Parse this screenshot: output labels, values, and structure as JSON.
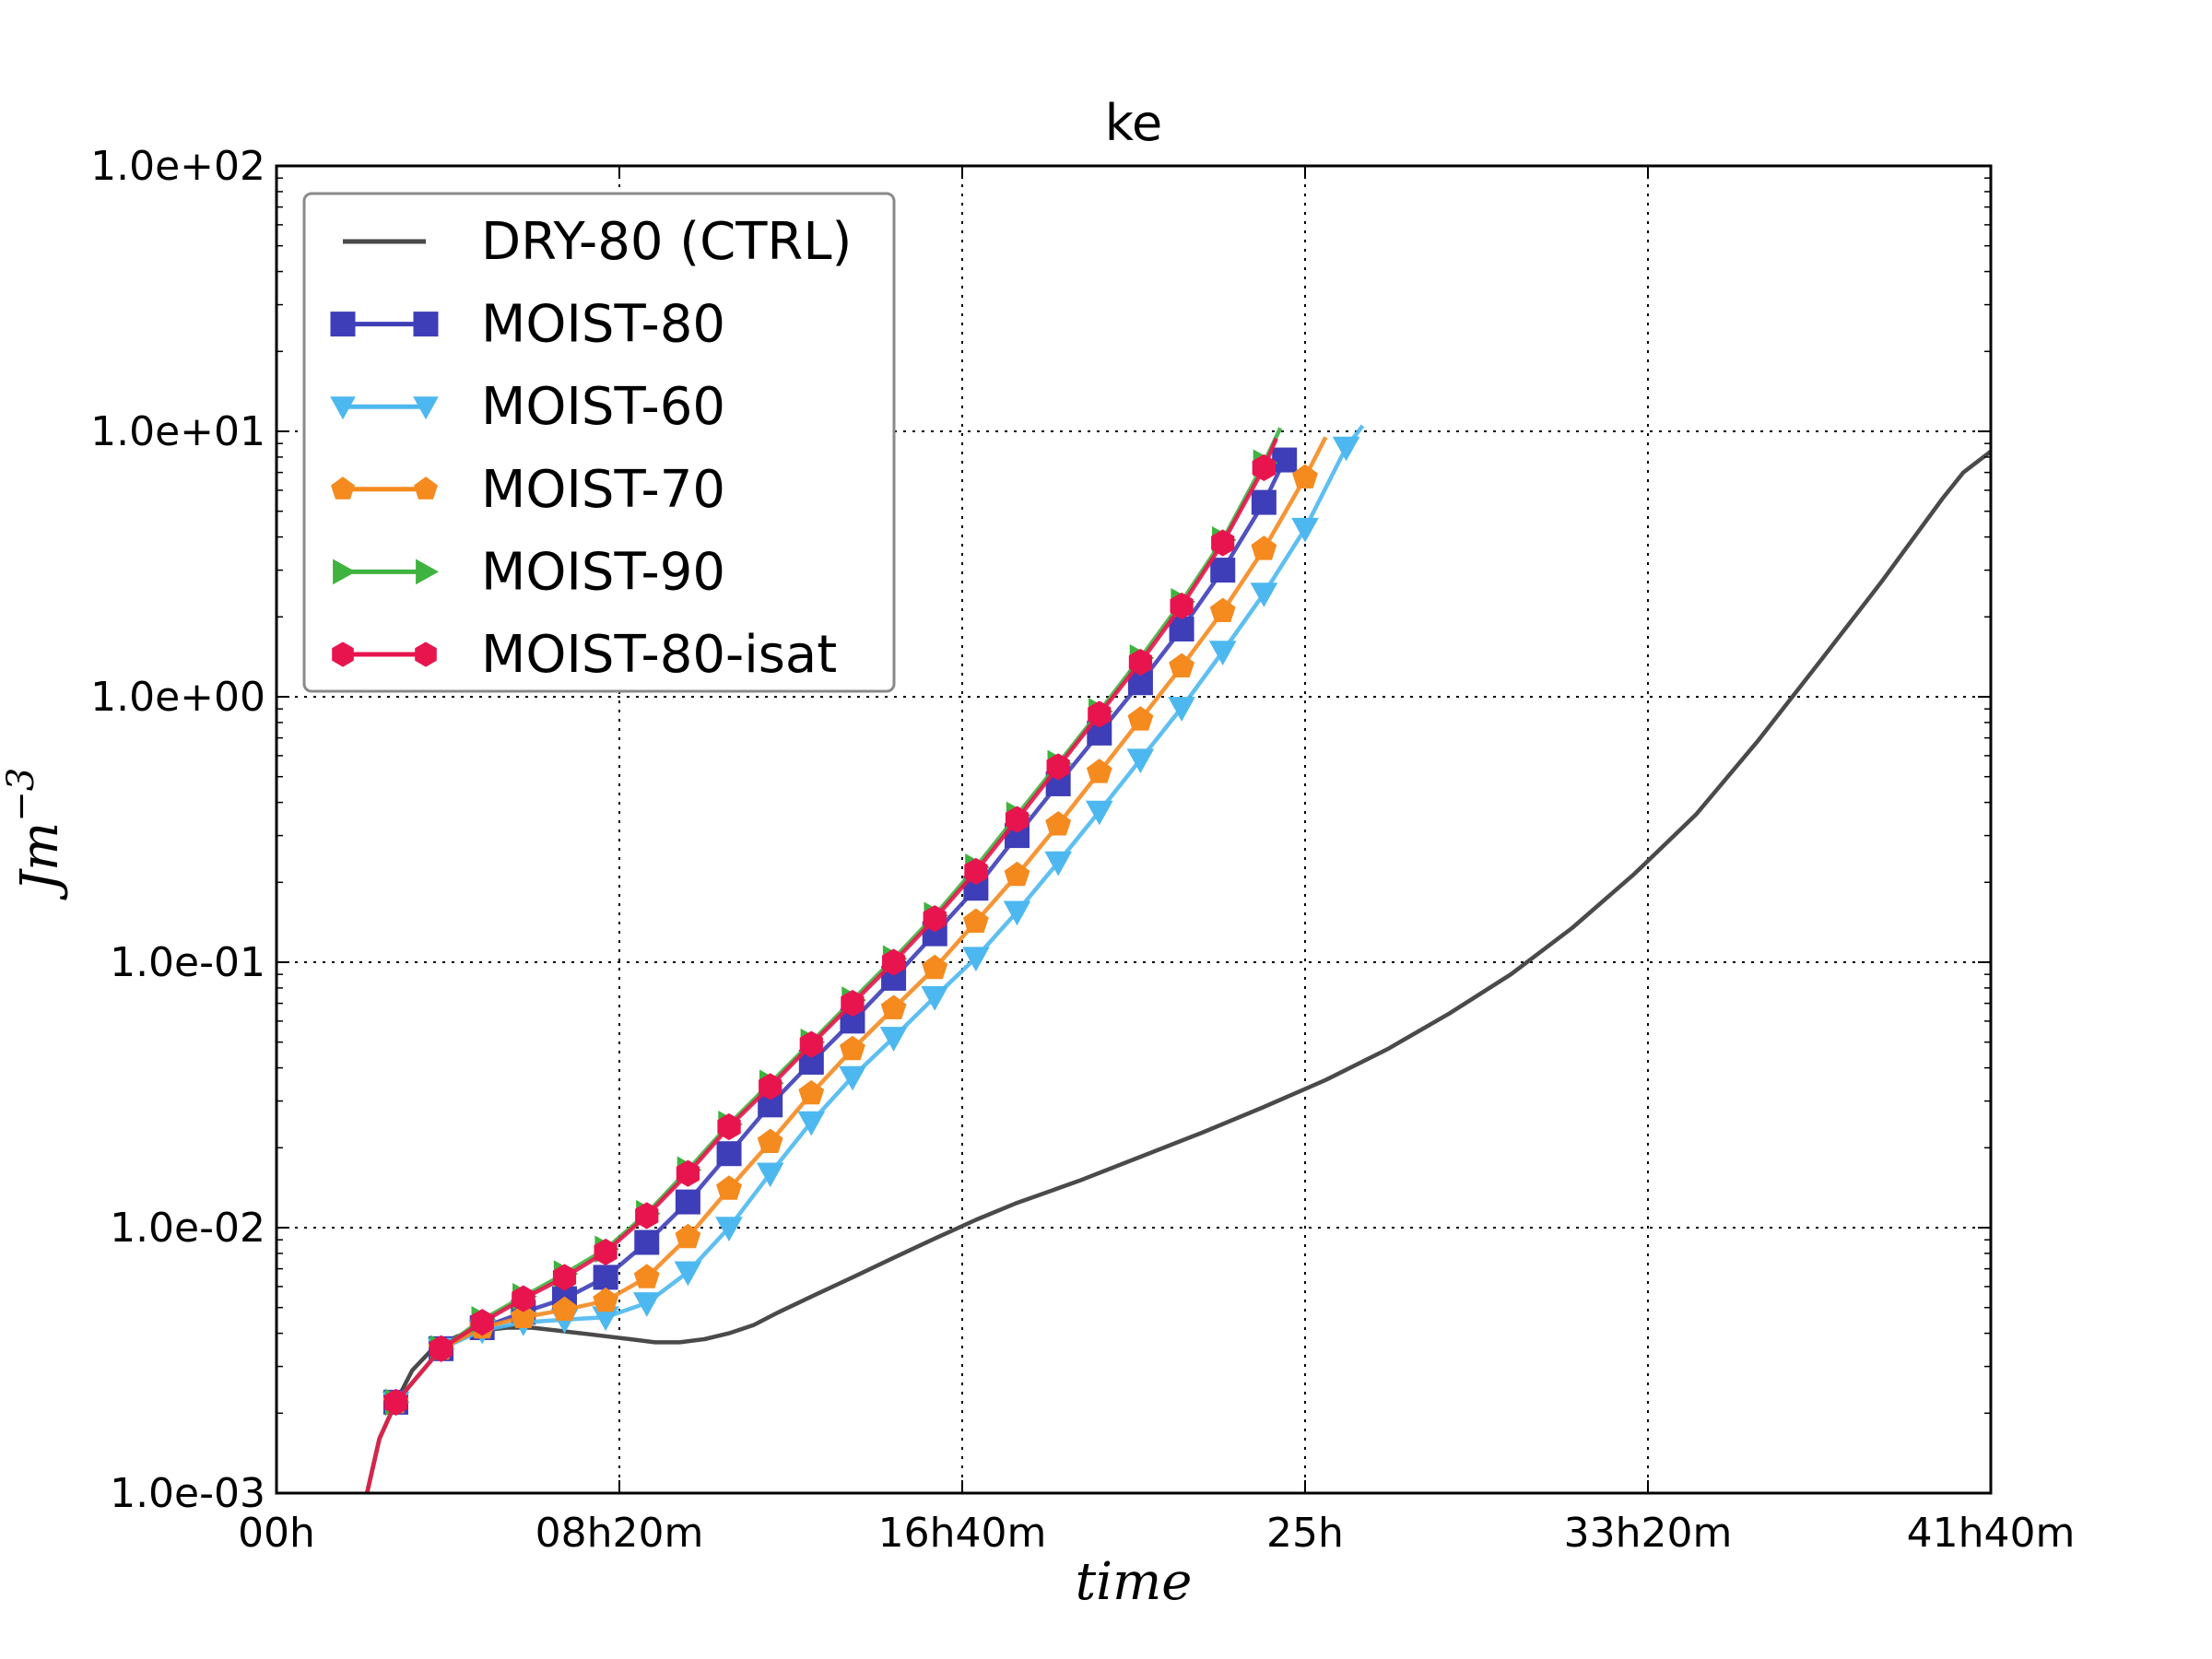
{
  "chart_data": {
    "type": "line",
    "title": "ke",
    "xlabel": "time",
    "ylabel": {
      "base": "Jm",
      "exponent": "−3"
    },
    "yscale": "log",
    "xlim_hours": [
      0,
      41.6667
    ],
    "ylim": [
      0.001,
      100
    ],
    "grid": true,
    "legend_position": "top-left",
    "xticks": [
      {
        "value": 0,
        "label": "00h"
      },
      {
        "value": 8.3333,
        "label": "08h20m"
      },
      {
        "value": 16.6667,
        "label": "16h40m"
      },
      {
        "value": 25,
        "label": "25h"
      },
      {
        "value": 33.3333,
        "label": "33h20m"
      },
      {
        "value": 41.6667,
        "label": "41h40m"
      }
    ],
    "yticks": [
      {
        "value": 0.001,
        "label": "1.0e-03"
      },
      {
        "value": 0.01,
        "label": "1.0e-02"
      },
      {
        "value": 0.1,
        "label": "1.0e-01"
      },
      {
        "value": 1,
        "label": "1.0e+00"
      },
      {
        "value": 10,
        "label": "1.0e+01"
      },
      {
        "value": 100,
        "label": "1.0e+02"
      }
    ],
    "series": [
      {
        "name": "DRY-80 (CTRL)",
        "color": "#4a4a4a",
        "marker": "none",
        "x": [
          2.2,
          2.5,
          2.9,
          3.3,
          3.8,
          4.4,
          5.0,
          5.6,
          6.2,
          6.8,
          7.4,
          8.0,
          8.6,
          9.2,
          9.8,
          10.4,
          11.0,
          11.6,
          12.2,
          13.0,
          14.0,
          15.0,
          16.0,
          17.0,
          18.0,
          19.5,
          21.0,
          22.5,
          24.0,
          25.5,
          27.0,
          28.5,
          30.0,
          31.5,
          33.0,
          34.5,
          36.0,
          37.5,
          39.0,
          40.5,
          41.0,
          41.6667
        ],
        "y": [
          0.001,
          0.0016,
          0.0022,
          0.0029,
          0.0035,
          0.0039,
          0.0041,
          0.0042,
          0.0042,
          0.0041,
          0.004,
          0.0039,
          0.0038,
          0.0037,
          0.0037,
          0.0038,
          0.004,
          0.0043,
          0.0048,
          0.0055,
          0.0065,
          0.0077,
          0.0091,
          0.0107,
          0.0124,
          0.015,
          0.0185,
          0.0228,
          0.0285,
          0.036,
          0.047,
          0.064,
          0.09,
          0.135,
          0.215,
          0.36,
          0.68,
          1.35,
          2.7,
          5.6,
          7.0,
          8.4
        ]
      },
      {
        "name": "MOIST-80",
        "color": "#3e3eb8",
        "marker": "square",
        "x": [
          2.2,
          2.5,
          2.9,
          4.0,
          5.0,
          6.0,
          7.0,
          8.0,
          9.0,
          10.0,
          11.0,
          12.0,
          13.0,
          14.0,
          15.0,
          16.0,
          17.0,
          18.0,
          19.0,
          20.0,
          21.0,
          22.0,
          23.0,
          24.0,
          24.5
        ],
        "y": [
          0.001,
          0.0016,
          0.0022,
          0.0035,
          0.0042,
          0.0048,
          0.0054,
          0.0065,
          0.0088,
          0.0125,
          0.019,
          0.029,
          0.042,
          0.06,
          0.087,
          0.128,
          0.19,
          0.3,
          0.47,
          0.73,
          1.13,
          1.8,
          3.0,
          5.4,
          7.8
        ]
      },
      {
        "name": "MOIST-60",
        "color": "#4db8ef",
        "marker": "triangle-down",
        "x": [
          2.2,
          2.5,
          2.9,
          4.0,
          5.0,
          6.0,
          7.0,
          8.0,
          9.0,
          10.0,
          11.0,
          12.0,
          13.0,
          14.0,
          15.0,
          16.0,
          17.0,
          18.0,
          19.0,
          20.0,
          21.0,
          22.0,
          23.0,
          24.0,
          25.0,
          26.0,
          26.4
        ],
        "y": [
          0.001,
          0.0016,
          0.0022,
          0.0035,
          0.0041,
          0.0044,
          0.0045,
          0.0046,
          0.0052,
          0.0068,
          0.01,
          0.016,
          0.025,
          0.037,
          0.052,
          0.074,
          0.104,
          0.155,
          0.238,
          0.37,
          0.58,
          0.91,
          1.48,
          2.45,
          4.3,
          8.7,
          10.5
        ]
      },
      {
        "name": "MOIST-70",
        "color": "#f58a1f",
        "marker": "pentagon",
        "x": [
          2.2,
          2.5,
          2.9,
          4.0,
          5.0,
          6.0,
          7.0,
          8.0,
          9.0,
          10.0,
          11.0,
          12.0,
          13.0,
          14.0,
          15.0,
          16.0,
          17.0,
          18.0,
          19.0,
          20.0,
          21.0,
          22.0,
          23.0,
          24.0,
          25.0,
          25.5
        ],
        "y": [
          0.001,
          0.0016,
          0.0022,
          0.0035,
          0.0042,
          0.0046,
          0.0049,
          0.0053,
          0.0065,
          0.0092,
          0.014,
          0.021,
          0.032,
          0.047,
          0.067,
          0.095,
          0.142,
          0.213,
          0.33,
          0.52,
          0.82,
          1.3,
          2.1,
          3.6,
          6.7,
          9.5
        ]
      },
      {
        "name": "MOIST-90",
        "color": "#3fb33f",
        "marker": "triangle-right",
        "x": [
          2.2,
          2.5,
          2.9,
          4.0,
          5.0,
          6.0,
          7.0,
          8.0,
          9.0,
          10.0,
          11.0,
          12.0,
          13.0,
          14.0,
          15.0,
          16.0,
          17.0,
          18.0,
          19.0,
          20.0,
          21.0,
          22.0,
          23.0,
          24.0,
          24.4
        ],
        "y": [
          0.001,
          0.0016,
          0.0022,
          0.0035,
          0.0045,
          0.0055,
          0.0067,
          0.0083,
          0.0113,
          0.0165,
          0.0245,
          0.035,
          0.05,
          0.072,
          0.103,
          0.15,
          0.228,
          0.358,
          0.56,
          0.88,
          1.4,
          2.28,
          3.9,
          7.6,
          10.3
        ]
      },
      {
        "name": "MOIST-80-isat",
        "color": "#e8144e",
        "marker": "hexagon",
        "x": [
          2.2,
          2.5,
          2.9,
          4.0,
          5.0,
          6.0,
          7.0,
          8.0,
          9.0,
          10.0,
          11.0,
          12.0,
          13.0,
          14.0,
          15.0,
          16.0,
          17.0,
          18.0,
          19.0,
          20.0,
          21.0,
          22.0,
          23.0,
          24.0,
          24.3
        ],
        "y": [
          0.001,
          0.0016,
          0.0022,
          0.0035,
          0.0044,
          0.0054,
          0.0065,
          0.0081,
          0.0111,
          0.016,
          0.024,
          0.034,
          0.049,
          0.07,
          0.1,
          0.146,
          0.22,
          0.345,
          0.545,
          0.86,
          1.35,
          2.2,
          3.8,
          7.3,
          9.4
        ]
      }
    ]
  }
}
